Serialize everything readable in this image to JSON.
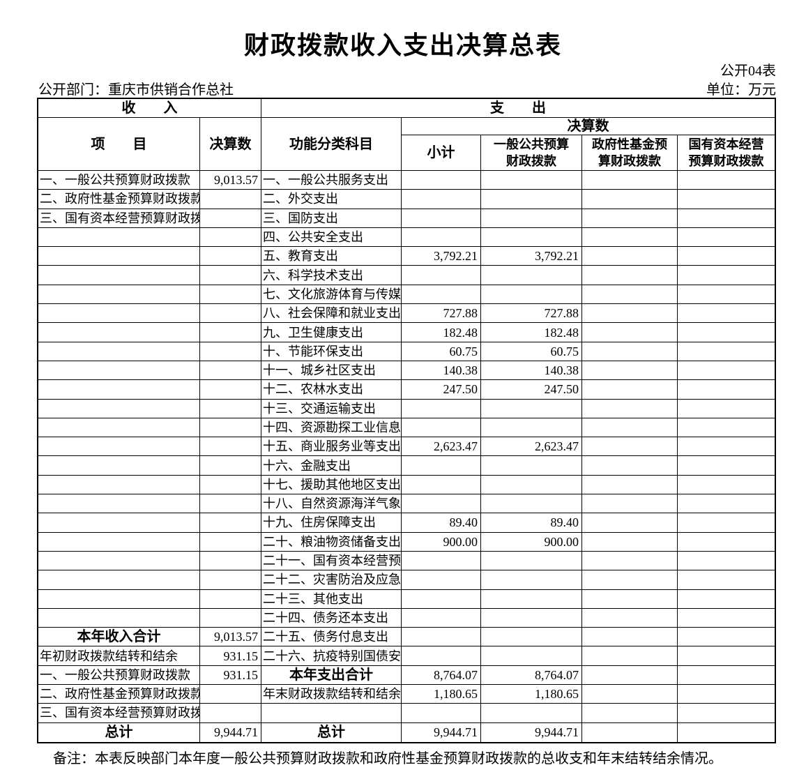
{
  "title": "财政拨款收入支出决算总表",
  "meta": {
    "sheet_label": "公开04表",
    "department_label": "公开部门：重庆市供销合作总社",
    "unit_label": "单位：万元"
  },
  "note": "备注：本表反映部门本年度一般公共预算财政拨款和政府性基金预算财政拨款的总收支和年末结转结余情况。",
  "table": {
    "section_income": "收　　入",
    "section_expense": "支　　出",
    "col_item": "项　　目",
    "col_amount": "决算数",
    "col_subject": "功能分类科目",
    "group_amount": "决算数",
    "col_subtotal": "小计",
    "col_general": "一般公共预算\n财政拨款",
    "col_fund": "政府性基金预\n算财政拨款",
    "col_capital": "国有资本经营\n预算财政拨款",
    "rows": [
      {
        "income": "一、一般公共预算财政拨款",
        "income_val": "9,013.57",
        "expense": "一、一般公共服务支出",
        "sub": "",
        "gen": "",
        "fund": "",
        "cap": ""
      },
      {
        "income": "二、政府性基金预算财政拨款",
        "income_val": "",
        "expense": "二、外交支出",
        "sub": "",
        "gen": "",
        "fund": "",
        "cap": ""
      },
      {
        "income": "三、国有资本经营预算财政拨款",
        "income_val": "",
        "expense": "三、国防支出",
        "sub": "",
        "gen": "",
        "fund": "",
        "cap": ""
      },
      {
        "income": "",
        "income_val": "",
        "expense": "四、公共安全支出",
        "sub": "",
        "gen": "",
        "fund": "",
        "cap": ""
      },
      {
        "income": "",
        "income_val": "",
        "expense": "五、教育支出",
        "sub": "3,792.21",
        "gen": "3,792.21",
        "fund": "",
        "cap": ""
      },
      {
        "income": "",
        "income_val": "",
        "expense": "六、科学技术支出",
        "sub": "",
        "gen": "",
        "fund": "",
        "cap": ""
      },
      {
        "income": "",
        "income_val": "",
        "expense": "七、文化旅游体育与传媒支出",
        "sub": "",
        "gen": "",
        "fund": "",
        "cap": ""
      },
      {
        "income": "",
        "income_val": "",
        "expense": "八、社会保障和就业支出",
        "sub": "727.88",
        "gen": "727.88",
        "fund": "",
        "cap": ""
      },
      {
        "income": "",
        "income_val": "",
        "expense": "九、卫生健康支出",
        "sub": "182.48",
        "gen": "182.48",
        "fund": "",
        "cap": ""
      },
      {
        "income": "",
        "income_val": "",
        "expense": "十、节能环保支出",
        "sub": "60.75",
        "gen": "60.75",
        "fund": "",
        "cap": ""
      },
      {
        "income": "",
        "income_val": "",
        "expense": "十一、城乡社区支出",
        "sub": "140.38",
        "gen": "140.38",
        "fund": "",
        "cap": ""
      },
      {
        "income": "",
        "income_val": "",
        "expense": "十二、农林水支出",
        "sub": "247.50",
        "gen": "247.50",
        "fund": "",
        "cap": ""
      },
      {
        "income": "",
        "income_val": "",
        "expense": "十三、交通运输支出",
        "sub": "",
        "gen": "",
        "fund": "",
        "cap": ""
      },
      {
        "income": "",
        "income_val": "",
        "expense": "十四、资源勘探工业信息等支出",
        "sub": "",
        "gen": "",
        "fund": "",
        "cap": ""
      },
      {
        "income": "",
        "income_val": "",
        "expense": "十五、商业服务业等支出",
        "sub": "2,623.47",
        "gen": "2,623.47",
        "fund": "",
        "cap": ""
      },
      {
        "income": "",
        "income_val": "",
        "expense": "十六、金融支出",
        "sub": "",
        "gen": "",
        "fund": "",
        "cap": ""
      },
      {
        "income": "",
        "income_val": "",
        "expense": "十七、援助其他地区支出",
        "sub": "",
        "gen": "",
        "fund": "",
        "cap": ""
      },
      {
        "income": "",
        "income_val": "",
        "expense": "十八、自然资源海洋气象等支出",
        "sub": "",
        "gen": "",
        "fund": "",
        "cap": ""
      },
      {
        "income": "",
        "income_val": "",
        "expense": "十九、住房保障支出",
        "sub": "89.40",
        "gen": "89.40",
        "fund": "",
        "cap": ""
      },
      {
        "income": "",
        "income_val": "",
        "expense": "二十、粮油物资储备支出",
        "sub": "900.00",
        "gen": "900.00",
        "fund": "",
        "cap": ""
      },
      {
        "income": "",
        "income_val": "",
        "expense": "二十一、国有资本经营预算支出",
        "sub": "",
        "gen": "",
        "fund": "",
        "cap": ""
      },
      {
        "income": "",
        "income_val": "",
        "expense": "二十二、灾害防治及应急管理支出",
        "sub": "",
        "gen": "",
        "fund": "",
        "cap": ""
      },
      {
        "income": "",
        "income_val": "",
        "expense": "二十三、其他支出",
        "sub": "",
        "gen": "",
        "fund": "",
        "cap": ""
      },
      {
        "income": "",
        "income_val": "",
        "expense": "二十四、债务还本支出",
        "sub": "",
        "gen": "",
        "fund": "",
        "cap": ""
      },
      {
        "income": "本年收入合计",
        "income_total": true,
        "income_val": "9,013.57",
        "expense": "二十五、债务付息支出",
        "sub": "",
        "gen": "",
        "fund": "",
        "cap": ""
      },
      {
        "income": "年初财政拨款结转和结余",
        "income_val": "931.15",
        "expense": "二十六、抗疫特别国债安排的支出",
        "sub": "",
        "gen": "",
        "fund": "",
        "cap": ""
      },
      {
        "income": "一、一般公共预算财政拨款",
        "income_val": "931.15",
        "expense": "本年支出合计",
        "expense_total": true,
        "sub": "8,764.07",
        "gen": "8,764.07",
        "fund": "",
        "cap": ""
      },
      {
        "income": "二、政府性基金预算财政拨款",
        "income_val": "",
        "expense": "年末财政拨款结转和结余",
        "sub": "1,180.65",
        "gen": "1,180.65",
        "fund": "",
        "cap": ""
      },
      {
        "income": "三、国有资本经营预算财政拨款",
        "income_val": "",
        "expense": "",
        "sub": "",
        "gen": "",
        "fund": "",
        "cap": ""
      },
      {
        "income": "总计",
        "income_total": true,
        "income_val": "9,944.71",
        "expense": "总计",
        "expense_total": true,
        "sub": "9,944.71",
        "gen": "9,944.71",
        "fund": "",
        "cap": ""
      }
    ]
  }
}
